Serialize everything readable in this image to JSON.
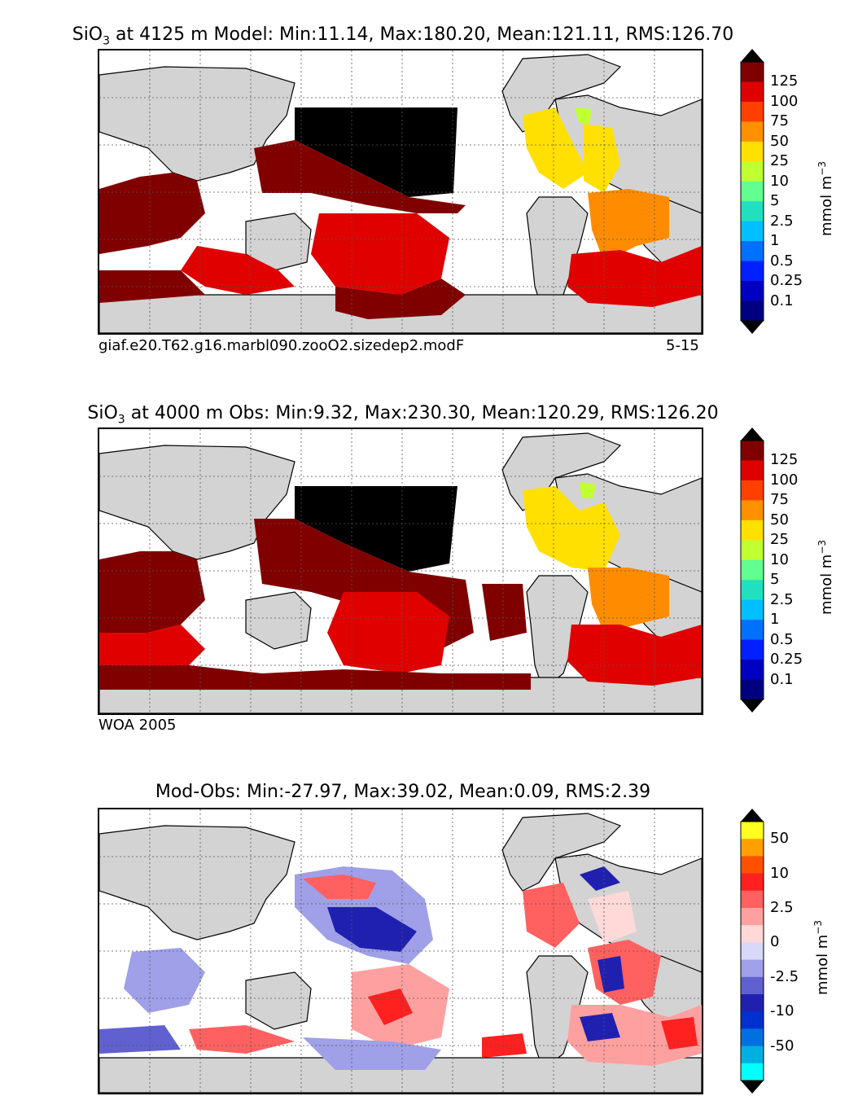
{
  "panels": [
    {
      "title_prefix": "SiO",
      "title_sub": "3",
      "title_rest": " at 4125 m Model: Min:11.14, Max:180.20, Mean:121.11, RMS:126.70",
      "caption_left": "giaf.e20.T62.g16.marbl090.zooO2.sizedep2.modF",
      "caption_right": "5-15",
      "colorbar": {
        "unit": "mmol m",
        "unit_sup": "−3",
        "labels": [
          "125",
          "100",
          "75",
          "50",
          "25",
          "10",
          "5",
          "2.5",
          "1",
          "0.5",
          "0.25",
          "0.1"
        ],
        "colors": [
          "#800000",
          "#e00000",
          "#ff4000",
          "#ff9000",
          "#ffe000",
          "#c0ff30",
          "#60ff90",
          "#20e0c0",
          "#00c0ff",
          "#0070ff",
          "#0020ff",
          "#0000c0",
          "#000080"
        ],
        "extend_top": "#000000",
        "extend_bottom": "#000000"
      }
    },
    {
      "title_prefix": "SiO",
      "title_sub": "3",
      "title_rest": " at 4000 m Obs: Min:9.32, Max:230.30, Mean:120.29, RMS:126.20",
      "caption_left": "WOA 2005",
      "caption_right": "",
      "colorbar": {
        "unit": "mmol m",
        "unit_sup": "−3",
        "labels": [
          "125",
          "100",
          "75",
          "50",
          "25",
          "10",
          "5",
          "2.5",
          "1",
          "0.5",
          "0.25",
          "0.1"
        ],
        "colors": [
          "#800000",
          "#e00000",
          "#ff4000",
          "#ff9000",
          "#ffe000",
          "#c0ff30",
          "#60ff90",
          "#20e0c0",
          "#00c0ff",
          "#0070ff",
          "#0020ff",
          "#0000c0",
          "#000080"
        ],
        "extend_top": "#000000",
        "extend_bottom": "#000000"
      }
    },
    {
      "title_prefix": "",
      "title_sub": "",
      "title_rest": "Mod-Obs: Min:-27.97, Max:39.02, Mean:0.09, RMS:2.39",
      "caption_left": "",
      "caption_right": "",
      "colorbar": {
        "unit": "mmol m",
        "unit_sup": "−3",
        "labels": [
          "50",
          "10",
          "2.5",
          "0",
          "-2.5",
          "-10",
          "-50"
        ],
        "colors": [
          "#ffff20",
          "#ffa000",
          "#ff5000",
          "#ff2020",
          "#ff6060",
          "#ffa0a0",
          "#ffd8d8",
          "#d8d8f8",
          "#a0a0e8",
          "#6060d0",
          "#2020b0",
          "#0030d0",
          "#0070e0",
          "#00b0e0",
          "#00ffff"
        ],
        "extend_top": "#000000",
        "extend_bottom": "#000000"
      }
    }
  ],
  "colors": {
    "land": "#d3d3d3",
    "ocean_blank": "#ffffff",
    "pacific_max": "#000000",
    "deep_red": "#800000",
    "red": "#e00000",
    "orange": "#ff8c00",
    "yellow": "#ffe000",
    "diff_pos": "#f03030",
    "diff_neg": "#3030c0"
  }
}
